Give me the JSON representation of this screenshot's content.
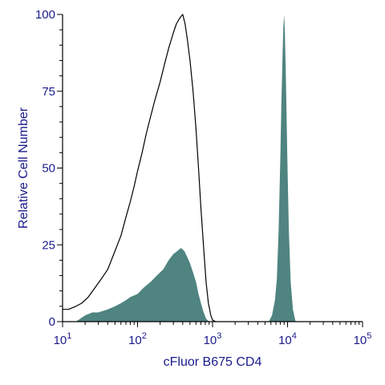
{
  "chart_data": {
    "type": "area",
    "xscale": "log",
    "xlim": [
      10,
      100000
    ],
    "ylim": [
      0,
      100
    ],
    "xlabel": "cFluor B675 CD4",
    "ylabel": "Relative Cell Number",
    "grid": false,
    "x_ticks": [
      {
        "base": "10",
        "exp": "1",
        "value": 10
      },
      {
        "base": "10",
        "exp": "2",
        "value": 100
      },
      {
        "base": "10",
        "exp": "3",
        "value": 1000
      },
      {
        "base": "10",
        "exp": "4",
        "value": 10000
      },
      {
        "base": "10",
        "exp": "5",
        "value": 100000
      }
    ],
    "y_ticks": [
      "0",
      "25",
      "50",
      "75",
      "100"
    ],
    "colors": {
      "axis": "#000000",
      "text": "#1a1a8c",
      "fill": "#4f8480",
      "outline": "#000000"
    },
    "series": [
      {
        "style": "outline",
        "x": [
          10,
          12,
          15,
          18,
          22,
          27,
          33,
          40,
          50,
          60,
          70,
          80,
          90,
          100,
          115,
          130,
          150,
          170,
          200,
          230,
          260,
          300,
          330,
          370,
          400,
          430,
          460,
          500,
          550,
          600,
          650,
          700,
          760,
          820,
          880,
          950,
          1000,
          1100
        ],
        "y": [
          4,
          4,
          5,
          6,
          8,
          11,
          14,
          17,
          23,
          28,
          34,
          39,
          44,
          49,
          55,
          61,
          67,
          72,
          78,
          84,
          89,
          94,
          97,
          99,
          100,
          97,
          92,
          85,
          75,
          63,
          50,
          37,
          24,
          13,
          6,
          2,
          0.5,
          0
        ]
      },
      {
        "style": "filled",
        "x": [
          15,
          20,
          25,
          30,
          40,
          50,
          60,
          70,
          80,
          100,
          120,
          150,
          180,
          220,
          260,
          300,
          340,
          380,
          420,
          460,
          500,
          550,
          600,
          650,
          700,
          760,
          820,
          900
        ],
        "y": [
          0,
          2,
          3,
          3,
          4,
          5,
          6,
          7,
          8,
          9,
          11,
          13,
          15,
          17,
          20,
          22,
          23,
          24,
          23,
          21,
          19,
          16,
          13,
          9,
          6,
          3,
          1,
          0
        ]
      },
      {
        "style": "filled",
        "x": [
          5600,
          6200,
          6800,
          7200,
          7600,
          8000,
          8300,
          8600,
          8800,
          9000,
          9200,
          9500,
          9900,
          10400,
          11000,
          11800,
          12800
        ],
        "y": [
          0,
          2,
          7,
          14,
          30,
          52,
          72,
          88,
          96,
          100,
          95,
          80,
          55,
          30,
          13,
          4,
          0
        ]
      }
    ]
  }
}
